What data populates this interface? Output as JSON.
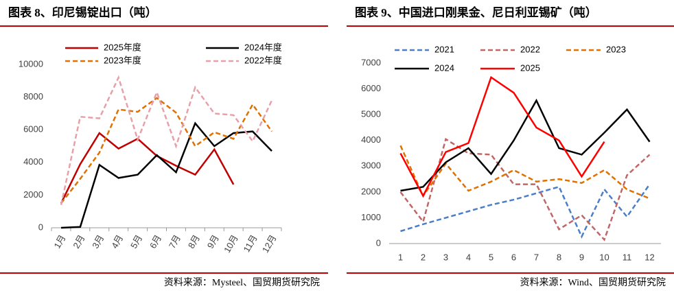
{
  "chart_data": [
    {
      "type": "line",
      "title": "图表 8、印尼锡锭出口（吨）",
      "source": "资料来源：Mysteel、国贸期货研究院",
      "categories": [
        "1月",
        "2月",
        "3月",
        "4月",
        "5月",
        "6月",
        "7月",
        "8月",
        "9月",
        "10月",
        "11月",
        "12月"
      ],
      "ylim": [
        0,
        10000
      ],
      "yticks": [
        0,
        2000,
        4000,
        6000,
        8000,
        10000
      ],
      "grid": false,
      "series": [
        {
          "name": "2025年度",
          "color": "#c00000",
          "dashed": false,
          "values": [
            1500,
            3900,
            5800,
            4850,
            5450,
            4400,
            3800,
            3250,
            4800,
            2650,
            null,
            null
          ]
        },
        {
          "name": "2024年度",
          "color": "#000000",
          "dashed": false,
          "values": [
            0,
            50,
            3850,
            3050,
            3250,
            4450,
            3400,
            6400,
            5000,
            5800,
            5900,
            4700
          ]
        },
        {
          "name": "2023年度",
          "color": "#e07000",
          "dashed": true,
          "values": [
            1500,
            3000,
            4600,
            7250,
            7100,
            7950,
            7050,
            5000,
            5850,
            5450,
            7550,
            5900
          ]
        },
        {
          "name": "2022年度",
          "color": "#e8a0a8",
          "dashed": true,
          "values": [
            1400,
            6800,
            6700,
            9200,
            5400,
            8300,
            5000,
            8600,
            7000,
            6900,
            5300,
            7800
          ]
        }
      ]
    },
    {
      "type": "line",
      "title": "图表 9、中国进口刚果金、尼日利亚锡矿（吨）",
      "source": "资料来源：Wind、国贸期货研究院",
      "categories": [
        1,
        2,
        3,
        4,
        5,
        6,
        7,
        8,
        9,
        10,
        11,
        12
      ],
      "ylim": [
        0,
        7000
      ],
      "yticks": [
        0,
        1000,
        2000,
        3000,
        4000,
        5000,
        6000,
        7000
      ],
      "grid": false,
      "series": [
        {
          "name": "2021",
          "color": "#4a7ec8",
          "dashed": true,
          "values": [
            480,
            750,
            1000,
            1250,
            1500,
            1700,
            1950,
            2200,
            270,
            2100,
            1040,
            2300
          ]
        },
        {
          "name": "2022",
          "color": "#c06666",
          "dashed": true,
          "values": [
            2000,
            850,
            4050,
            3500,
            3450,
            2300,
            2300,
            550,
            1100,
            150,
            2650,
            3450
          ]
        },
        {
          "name": "2023",
          "color": "#e07000",
          "dashed": true,
          "values": [
            3800,
            1850,
            3100,
            2050,
            2400,
            2850,
            2400,
            2500,
            2350,
            2850,
            2100,
            1750
          ]
        },
        {
          "name": "2024",
          "color": "#000000",
          "dashed": false,
          "values": [
            2050,
            2200,
            3150,
            3700,
            2700,
            4000,
            5550,
            3700,
            3450,
            4300,
            5200,
            3950
          ]
        },
        {
          "name": "2025",
          "color": "#ff0000",
          "dashed": false,
          "values": [
            3500,
            1850,
            3550,
            3900,
            6450,
            5850,
            4500,
            4000,
            2600,
            3950,
            null,
            null
          ]
        }
      ]
    }
  ]
}
